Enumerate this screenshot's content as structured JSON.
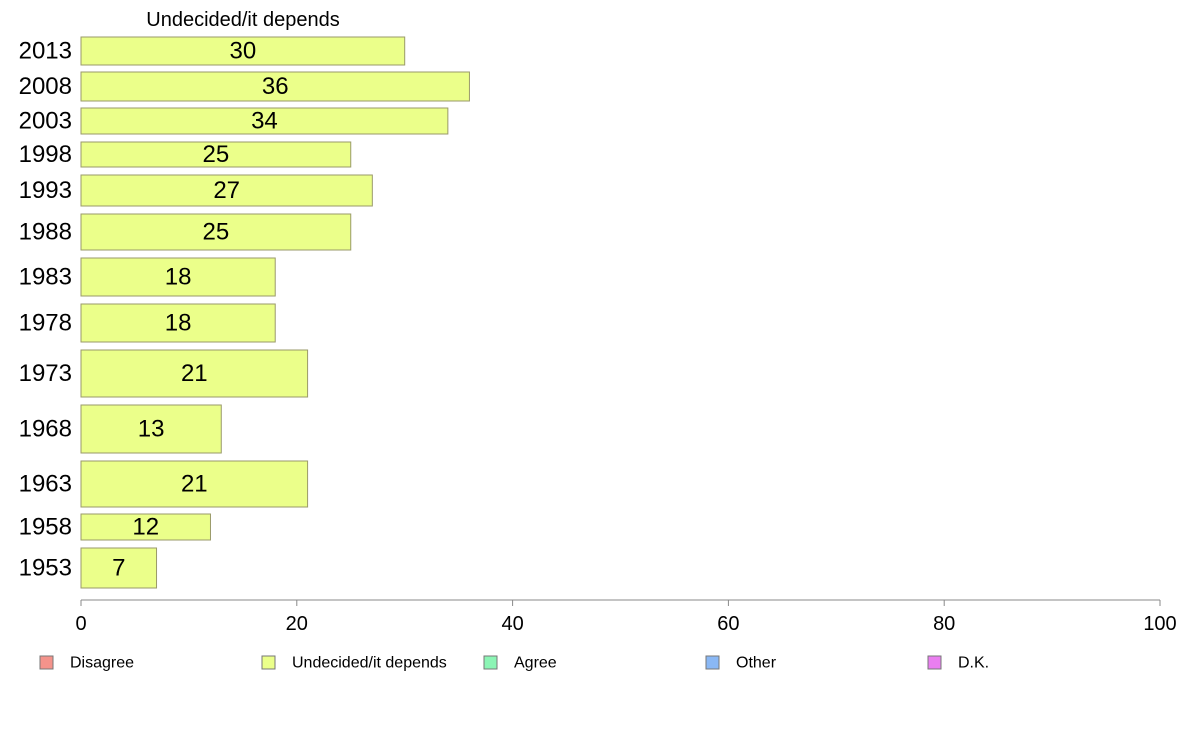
{
  "chart_data": {
    "type": "bar",
    "orientation": "horizontal",
    "title": "",
    "series_title": "Undecided/it depends",
    "categories": [
      "2013",
      "2008",
      "2003",
      "1998",
      "1993",
      "1988",
      "1983",
      "1978",
      "1973",
      "1968",
      "1963",
      "1958",
      "1953"
    ],
    "series": [
      {
        "name": "Undecided/it depends",
        "values": [
          30,
          36,
          34,
          25,
          27,
          25,
          18,
          18,
          21,
          13,
          21,
          12,
          7
        ],
        "color": "#ebff8a"
      }
    ],
    "value_labels": [
      "30",
      "36",
      "34",
      "25",
      "27",
      "25",
      "18",
      "18",
      "21",
      "13",
      "21",
      "12",
      "7"
    ],
    "xlim": [
      0,
      100
    ],
    "x_ticks": [
      0,
      20,
      40,
      60,
      80,
      100
    ],
    "x_tick_labels": [
      "0",
      "20",
      "40",
      "60",
      "80",
      "100"
    ],
    "grid": false,
    "legend_position": "bottom",
    "legend": [
      {
        "label": "Disagree",
        "color": "#f4938b"
      },
      {
        "label": "Undecided/it depends",
        "color": "#ebff8a"
      },
      {
        "label": "Agree",
        "color": "#8cf5b5"
      },
      {
        "label": "Other",
        "color": "#8ab8f5"
      },
      {
        "label": "D.K.",
        "color": "#ea7ef0"
      }
    ],
    "bar_stroke_color": "#9a9a6a",
    "axis_color": "#888888"
  }
}
